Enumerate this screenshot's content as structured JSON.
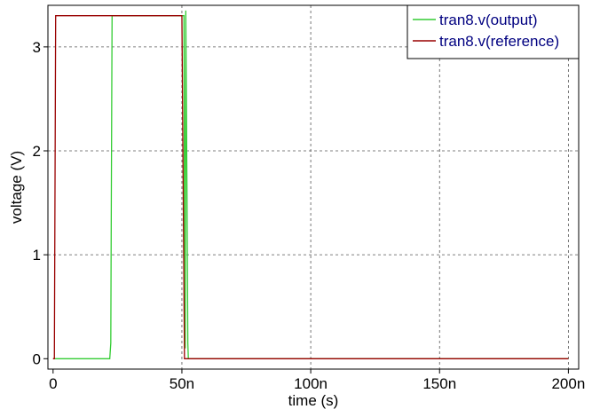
{
  "chart_data": {
    "type": "line",
    "xlabel": "time (s)",
    "ylabel": "voltage (V)",
    "xlim": [
      -2e-09,
      2.04e-07
    ],
    "ylim": [
      -0.1,
      3.4
    ],
    "x_ticks": [
      {
        "value": 0,
        "label": "0"
      },
      {
        "value": 5e-08,
        "label": "50n"
      },
      {
        "value": 1e-07,
        "label": "100n"
      },
      {
        "value": 1.5e-07,
        "label": "150n"
      },
      {
        "value": 2e-07,
        "label": "200n"
      }
    ],
    "y_ticks": [
      {
        "value": 0,
        "label": "0"
      },
      {
        "value": 1,
        "label": "1"
      },
      {
        "value": 2,
        "label": "2"
      },
      {
        "value": 3,
        "label": "3"
      }
    ],
    "grid": true,
    "legend_position": "top-right",
    "series": [
      {
        "name": "tran8.v(output)",
        "color": "#33cc33",
        "x": [
          0,
          2.2e-08,
          2.24e-08,
          2.26e-08,
          2.29e-08,
          5.08e-08,
          5.1e-08,
          5.13e-08,
          5.15e-08,
          5.2e-08,
          5.23e-08,
          5.25e-08,
          2e-07
        ],
        "y": [
          0,
          0,
          0.15,
          1.5,
          3.3,
          3.3,
          1.5,
          0.1,
          3.35,
          1.5,
          0.15,
          0,
          0
        ]
      },
      {
        "name": "tran8.v(reference)",
        "color": "#990000",
        "x": [
          0,
          5e-10,
          1e-09,
          5e-08,
          5.05e-08,
          5.1e-08,
          2e-07
        ],
        "y": [
          0,
          0,
          3.3,
          3.3,
          1.65,
          0,
          0
        ]
      }
    ]
  }
}
